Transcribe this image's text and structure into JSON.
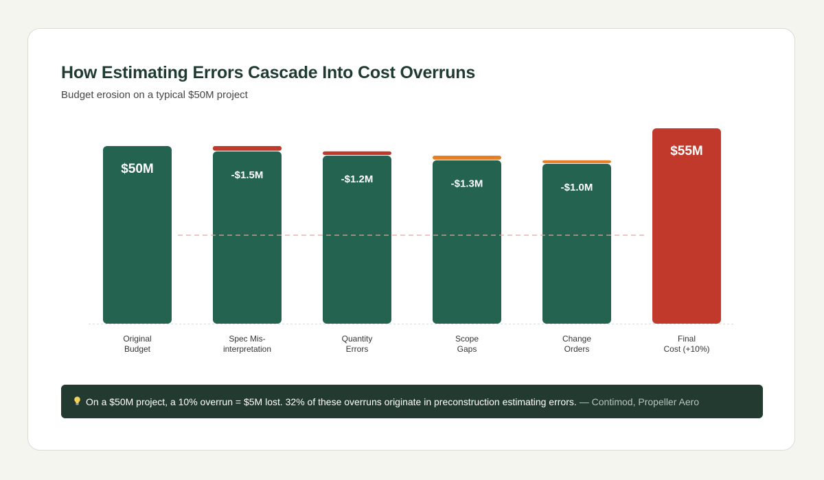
{
  "header": {
    "title": "How Estimating Errors Cascade Into Cost Overruns",
    "subtitle": "Budget erosion on a typical $50M project"
  },
  "footer": {
    "icon": "lightbulb-icon",
    "text": "On a $50M project, a 10% overrun = $5M lost. 32% of these overruns originate in preconstruction estimating errors.",
    "source": "— Contimod, Propeller Aero"
  },
  "colors": {
    "budget": "#236350",
    "design_error": "#c0392b",
    "scope_error": "#e67e22",
    "final": "#c0392b",
    "reference_line": "#e8a19a",
    "baseline": "#d9d9d9"
  },
  "chart_data": {
    "type": "bar",
    "categories": [
      "Original\nBudget",
      "Spec Mis-\ninterpretation",
      "Quantity\nErrors",
      "Scope\nGaps",
      "Change\nOrders",
      "Final\nCost (+10%)"
    ],
    "values": [
      50,
      48.5,
      47.3,
      46.0,
      45.0,
      55
    ],
    "erosion": [
      0,
      1.5,
      1.2,
      1.3,
      1.0,
      0
    ],
    "erosion_colors": [
      "",
      "#c0392b",
      "#c0392b",
      "#e67e22",
      "#e67e22",
      ""
    ],
    "bar_colors": [
      "#236350",
      "#236350",
      "#236350",
      "#236350",
      "#236350",
      "#c0392b"
    ],
    "data_labels": [
      "$50M",
      "-$1.5M",
      "-$1.2M",
      "-$1.3M",
      "-$1.0M",
      "$55M"
    ],
    "reference_line": {
      "style": "dashed"
    },
    "grid": false,
    "legend": "none"
  }
}
